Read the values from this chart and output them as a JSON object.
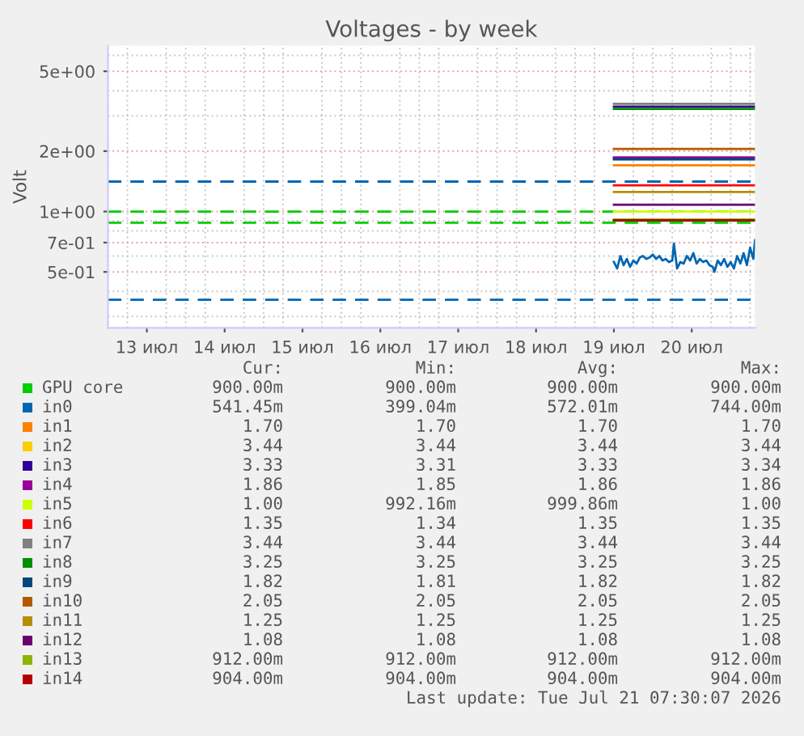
{
  "chart_data": {
    "type": "line",
    "title": "Voltages - by week",
    "ylabel": "Volt",
    "log": "y",
    "grid": true,
    "legend": "bottom",
    "line_style": "solid",
    "marker": "none",
    "xlim": [
      "2026-07-13T00:00",
      "2026-07-21T07:30"
    ],
    "xticks": [
      {
        "value": "2026-07-13T12:00",
        "label": "13 июл"
      },
      {
        "value": "2026-07-14T12:00",
        "label": "14 июл"
      },
      {
        "value": "2026-07-15T12:00",
        "label": "15 июл"
      },
      {
        "value": "2026-07-16T12:00",
        "label": "16 июл"
      },
      {
        "value": "2026-07-17T12:00",
        "label": "17 июл"
      },
      {
        "value": "2026-07-18T12:00",
        "label": "18 июл"
      },
      {
        "value": "2026-07-19T12:00",
        "label": "19 июл"
      },
      {
        "value": "2026-07-20T12:00",
        "label": "20 июл"
      }
    ],
    "ylim": [
      0.263,
      6.7
    ],
    "yticks": [
      {
        "value": 0.5,
        "label": "5e-01"
      },
      {
        "value": 0.7,
        "label": "7e-01"
      },
      {
        "value": 1,
        "label": "1e+00"
      },
      {
        "value": 2,
        "label": "2e+00"
      },
      {
        "value": 5,
        "label": "5e+00"
      }
    ],
    "x": [
      "2026-07-19T12:00",
      "2026-07-21T07:30"
    ],
    "series": [
      {
        "name": "GPU core",
        "color": "#00cc00",
        "values": [
          0.9,
          0.9
        ]
      },
      {
        "name": "in0",
        "color": "#0066b3",
        "x": [
          "2026-07-19T12:00",
          "2026-07-19T13:00",
          "2026-07-19T14:00",
          "2026-07-19T15:00",
          "2026-07-19T16:00",
          "2026-07-19T17:00",
          "2026-07-19T18:00",
          "2026-07-19T19:00",
          "2026-07-19T20:00",
          "2026-07-19T21:00",
          "2026-07-19T22:00",
          "2026-07-19T23:00",
          "2026-07-20T00:00",
          "2026-07-20T01:00",
          "2026-07-20T02:00",
          "2026-07-20T03:00",
          "2026-07-20T04:00",
          "2026-07-20T05:00",
          "2026-07-20T06:00",
          "2026-07-20T06:30",
          "2026-07-20T07:30",
          "2026-07-20T08:30",
          "2026-07-20T09:30",
          "2026-07-20T10:30",
          "2026-07-20T11:30",
          "2026-07-20T12:30",
          "2026-07-20T13:30",
          "2026-07-20T14:30",
          "2026-07-20T15:30",
          "2026-07-20T16:30",
          "2026-07-20T17:30",
          "2026-07-20T18:30",
          "2026-07-20T19:00",
          "2026-07-20T20:00",
          "2026-07-20T21:00",
          "2026-07-20T22:00",
          "2026-07-20T23:00",
          "2026-07-21T00:00",
          "2026-07-21T01:00",
          "2026-07-21T02:00",
          "2026-07-21T03:00",
          "2026-07-21T04:00",
          "2026-07-21T05:00",
          "2026-07-21T06:00",
          "2026-07-21T07:00",
          "2026-07-21T07:30"
        ],
        "values": [
          0.56,
          0.52,
          0.6,
          0.54,
          0.58,
          0.53,
          0.57,
          0.55,
          0.59,
          0.6,
          0.58,
          0.59,
          0.61,
          0.58,
          0.6,
          0.57,
          0.58,
          0.56,
          0.57,
          0.69,
          0.52,
          0.56,
          0.55,
          0.6,
          0.57,
          0.62,
          0.55,
          0.58,
          0.56,
          0.57,
          0.54,
          0.53,
          0.5,
          0.57,
          0.54,
          0.58,
          0.53,
          0.56,
          0.52,
          0.6,
          0.55,
          0.62,
          0.54,
          0.66,
          0.58,
          0.72
        ]
      },
      {
        "name": "in1",
        "color": "#ff8000",
        "values": [
          1.7,
          1.7
        ]
      },
      {
        "name": "in2",
        "color": "#ffcc00",
        "values": [
          null,
          null
        ]
      },
      {
        "name": "in3",
        "color": "#330099",
        "values": [
          3.33,
          3.33
        ]
      },
      {
        "name": "in4",
        "color": "#990099",
        "values": [
          1.86,
          1.86
        ]
      },
      {
        "name": "in5",
        "color": "#ccff00",
        "values": [
          1.0,
          1.0
        ]
      },
      {
        "name": "in6",
        "color": "#ff0000",
        "values": [
          1.35,
          1.35
        ]
      },
      {
        "name": "in7",
        "color": "#808080",
        "values": [
          3.44,
          3.44
        ]
      },
      {
        "name": "in8",
        "color": "#008f00",
        "values": [
          3.25,
          3.25
        ]
      },
      {
        "name": "in9",
        "color": "#00487d",
        "values": [
          1.82,
          1.82
        ]
      },
      {
        "name": "in10",
        "color": "#b35a00",
        "values": [
          2.05,
          2.05
        ]
      },
      {
        "name": "in11",
        "color": "#b38f00",
        "values": [
          1.25,
          1.25
        ]
      },
      {
        "name": "in12",
        "color": "#6b006b",
        "values": [
          1.08,
          1.08
        ]
      },
      {
        "name": "in13",
        "color": "#8fb300",
        "values": [
          0.912,
          0.912
        ]
      },
      {
        "name": "in14",
        "color": "#b30000",
        "values": [
          0.904,
          0.904
        ]
      }
    ],
    "ref_lines": [
      {
        "axis": "y",
        "value": 1.41,
        "color": "#0066b3",
        "line_style": "dashed"
      },
      {
        "axis": "y",
        "value": 0.363,
        "color": "#0066b3",
        "line_style": "dashed"
      },
      {
        "axis": "y",
        "value": 1.0,
        "color": "#00cc00",
        "line_style": "dashed"
      },
      {
        "axis": "y",
        "value": 0.88,
        "color": "#00cc00",
        "line_style": "dashed"
      }
    ],
    "annotations": [
      "Cur:",
      "Min:",
      "Avg:",
      "Max:",
      "900.00m",
      "900.00m",
      "900.00m",
      "900.00m",
      "541.45m",
      "399.04m",
      "572.01m",
      "744.00m",
      "1.70",
      "1.70",
      "1.70",
      "1.70",
      "3.44",
      "3.44",
      "3.44",
      "3.44",
      "3.33",
      "3.31",
      "3.33",
      "3.34",
      "1.86",
      "1.85",
      "1.86",
      "1.86",
      "1.00",
      "992.16m",
      "999.86m",
      "1.00",
      "1.35",
      "1.34",
      "1.35",
      "1.35",
      "3.44",
      "3.44",
      "3.44",
      "3.44",
      "3.25",
      "3.25",
      "3.25",
      "3.25",
      "1.82",
      "1.81",
      "1.82",
      "1.82",
      "2.05",
      "2.05",
      "2.05",
      "2.05",
      "1.25",
      "1.25",
      "1.25",
      "1.25",
      "1.08",
      "1.08",
      "1.08",
      "1.08",
      "912.00m",
      "912.00m",
      "912.00m",
      "912.00m",
      "904.00m",
      "904.00m",
      "904.00m",
      "904.00m",
      "Last update: Tue Jul 21 07:30:07 2026"
    ]
  }
}
